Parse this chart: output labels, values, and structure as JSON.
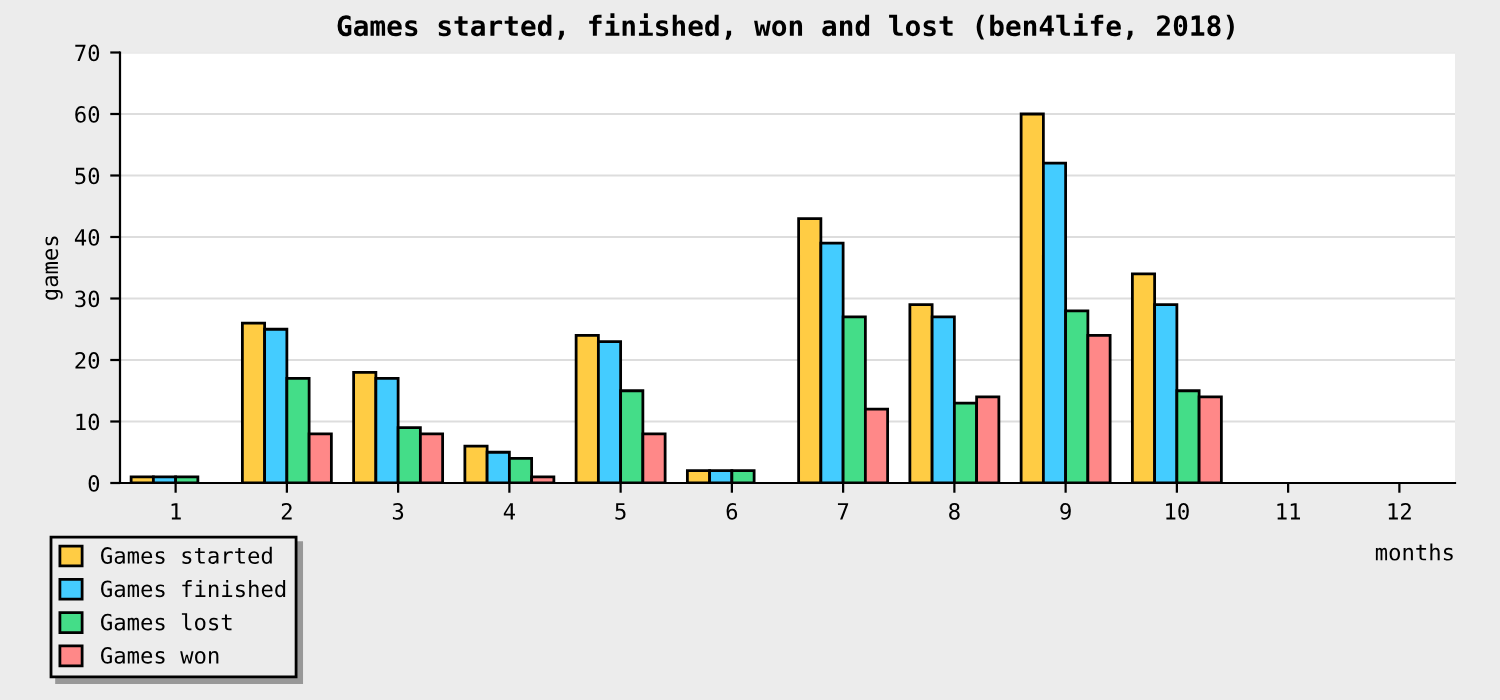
{
  "chart_data": {
    "type": "bar",
    "title": "Games started, finished, won and lost (ben4life, 2018)",
    "xlabel": "months",
    "ylabel": "games",
    "categories": [
      "1",
      "2",
      "3",
      "4",
      "5",
      "6",
      "7",
      "8",
      "9",
      "10",
      "11",
      "12"
    ],
    "series": [
      {
        "name": "Games started",
        "color": "#ffcc44",
        "values": [
          1,
          26,
          18,
          6,
          24,
          2,
          43,
          29,
          60,
          34,
          0,
          0
        ]
      },
      {
        "name": "Games finished",
        "color": "#44ccff",
        "values": [
          1,
          25,
          17,
          5,
          23,
          2,
          39,
          27,
          52,
          29,
          0,
          0
        ]
      },
      {
        "name": "Games lost",
        "color": "#44dd88",
        "values": [
          1,
          17,
          9,
          4,
          15,
          2,
          27,
          13,
          28,
          15,
          0,
          0
        ]
      },
      {
        "name": "Games won",
        "color": "#ff8888",
        "values": [
          0,
          8,
          8,
          1,
          8,
          0,
          12,
          14,
          24,
          14,
          0,
          0
        ]
      }
    ],
    "ylim": [
      0,
      70
    ],
    "yticks": [
      0,
      10,
      20,
      30,
      40,
      50,
      60,
      70
    ],
    "grid": "y",
    "legend": "bottom left"
  }
}
